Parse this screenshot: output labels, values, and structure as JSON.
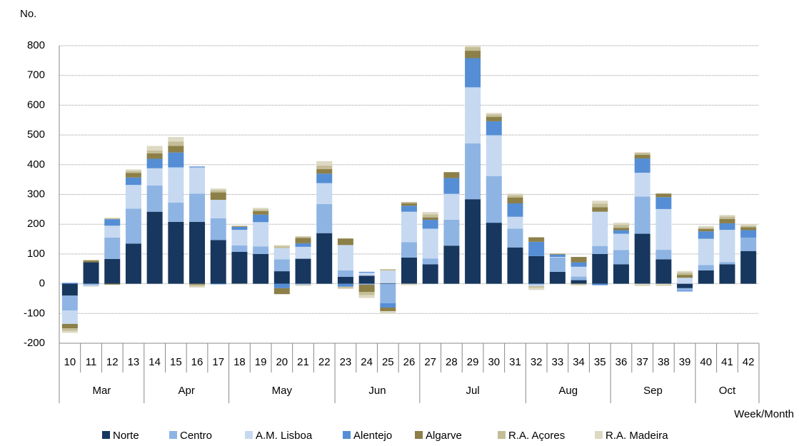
{
  "chart_data": {
    "type": "bar",
    "stacked": true,
    "y_label": "No.",
    "x_label": "Week/Month",
    "categories": [
      "10",
      "11",
      "12",
      "13",
      "14",
      "15",
      "16",
      "17",
      "18",
      "19",
      "20",
      "21",
      "22",
      "23",
      "24",
      "25",
      "26",
      "27",
      "28",
      "29",
      "30",
      "31",
      "32",
      "33",
      "34",
      "35",
      "36",
      "37",
      "38",
      "39",
      "40",
      "41",
      "42"
    ],
    "month_groups": [
      {
        "label": "Mar",
        "count": 4
      },
      {
        "label": "Apr",
        "count": 4
      },
      {
        "label": "May",
        "count": 5
      },
      {
        "label": "Jun",
        "count": 4
      },
      {
        "label": "Jul",
        "count": 5
      },
      {
        "label": "Aug",
        "count": 4
      },
      {
        "label": "Sep",
        "count": 4
      },
      {
        "label": "Oct",
        "count": 3
      }
    ],
    "ylim": [
      -200,
      800
    ],
    "yticks": [
      -200,
      -100,
      0,
      100,
      200,
      300,
      400,
      500,
      600,
      700,
      800
    ],
    "grid": true,
    "legend": "bottom",
    "series": [
      {
        "name": "Norte",
        "color": "#17375e",
        "values": [
          -40,
          72,
          83,
          135,
          242,
          208,
          208,
          147,
          107,
          100,
          42,
          84,
          170,
          23,
          27,
          2,
          88,
          65,
          128,
          284,
          205,
          122,
          93,
          40,
          12,
          100,
          65,
          168,
          82,
          -15,
          45,
          65,
          110
        ]
      },
      {
        "name": "Centro",
        "color": "#8eb4e3",
        "values": [
          -50,
          -5,
          72,
          117,
          88,
          65,
          95,
          73,
          22,
          25,
          40,
          -3,
          98,
          22,
          -3,
          -65,
          52,
          20,
          87,
          188,
          157,
          63,
          -3,
          48,
          12,
          27,
          48,
          125,
          32,
          -8,
          18,
          8,
          45
        ]
      },
      {
        "name": "A.M. Lisboa",
        "color": "#c6d9f1",
        "values": [
          -45,
          -3,
          40,
          80,
          58,
          118,
          88,
          62,
          52,
          82,
          38,
          40,
          70,
          85,
          10,
          42,
          102,
          100,
          87,
          188,
          137,
          40,
          -5,
          2,
          33,
          115,
          55,
          80,
          137,
          20,
          88,
          108,
          0
        ]
      },
      {
        "name": "Alentejo",
        "color": "#558ed5",
        "values": [
          3,
          0,
          22,
          25,
          32,
          50,
          3,
          -2,
          10,
          25,
          -15,
          12,
          32,
          -10,
          3,
          -15,
          20,
          30,
          53,
          98,
          47,
          45,
          48,
          8,
          15,
          -5,
          12,
          48,
          40,
          -3,
          25,
          22,
          25
        ]
      },
      {
        "name": "Algarve",
        "color": "#8c7f48",
        "values": [
          -15,
          6,
          -3,
          15,
          18,
          22,
          -3,
          25,
          2,
          12,
          -20,
          18,
          15,
          22,
          -25,
          -12,
          8,
          8,
          20,
          25,
          15,
          20,
          15,
          2,
          18,
          15,
          8,
          12,
          12,
          10,
          8,
          15,
          10
        ]
      },
      {
        "name": "R.A. Açores",
        "color": "#c4bd97",
        "values": [
          -8,
          2,
          3,
          7,
          10,
          15,
          -5,
          8,
          2,
          6,
          6,
          5,
          12,
          -5,
          -10,
          5,
          5,
          10,
          0,
          12,
          8,
          8,
          -5,
          2,
          -3,
          12,
          10,
          8,
          0,
          8,
          5,
          8,
          5
        ]
      },
      {
        "name": "R.A. Madeira",
        "color": "#ddd9c3",
        "values": [
          -7,
          -2,
          2,
          5,
          15,
          15,
          -5,
          5,
          -2,
          5,
          4,
          -5,
          15,
          -3,
          -10,
          -8,
          -5,
          8,
          0,
          5,
          5,
          5,
          -8,
          0,
          -3,
          10,
          7,
          -8,
          -8,
          5,
          5,
          5,
          5
        ]
      }
    ]
  }
}
